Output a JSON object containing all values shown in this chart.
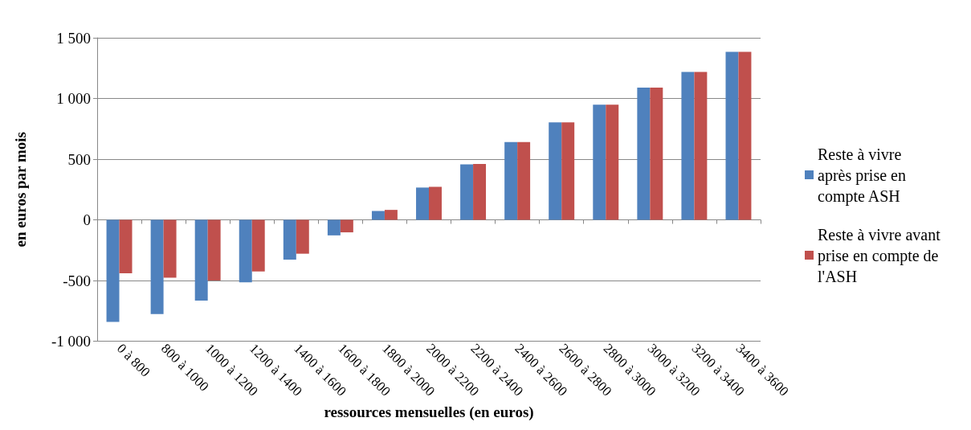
{
  "chart_data": {
    "type": "bar",
    "xlabel": "ressources mensuelles (en euros)",
    "ylabel": "en euros par mois",
    "categories": [
      "0 à 800",
      "800 à 1000",
      "1000 à 1200",
      "1200 à 1400",
      "1400 à 1600",
      "1600 à 1800",
      "1800 à 2000",
      "2000 à 2200",
      "2200 à 2400",
      "2400 à 2600",
      "2600 à 2800",
      "2800 à 3000",
      "3000 à 3200",
      "3200 à 3400",
      "3400 à 3600"
    ],
    "series": [
      {
        "name": "Reste à vivre après prise en compte ASH",
        "color": "#4f81bd",
        "values": [
          -840,
          -777,
          -665,
          -514,
          -328,
          -128,
          73,
          266,
          457,
          640,
          803,
          949,
          1090,
          1219,
          1384
        ]
      },
      {
        "name": "Reste à vivre avant prise en compte de l'ASH",
        "color": "#c0504d",
        "values": [
          -440,
          -477,
          -500,
          -425,
          -279,
          -103,
          82,
          272,
          461,
          640,
          803,
          949,
          1090,
          1219,
          1384
        ]
      }
    ],
    "ylim": [
      -1000,
      1500
    ],
    "yticks": [
      {
        "value": -1000,
        "label": "-1 000"
      },
      {
        "value": -500,
        "label": "-500"
      },
      {
        "value": 0,
        "label": "0"
      },
      {
        "value": 500,
        "label": "500"
      },
      {
        "value": 1000,
        "label": "1 000"
      },
      {
        "value": 1500,
        "label": "1 500"
      }
    ],
    "grid": "y",
    "legend": "right"
  }
}
